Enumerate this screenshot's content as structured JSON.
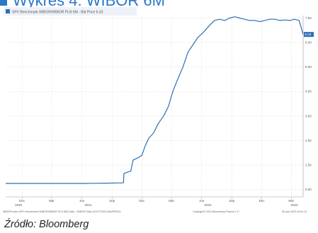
{
  "heading": {
    "text": "Wykres 4. WIBOR 6M"
  },
  "legend": {
    "label": "SPV Benchmark WIBOR/WIBOR PLN 6M - Bid Price 6.33"
  },
  "footer": {
    "left": "WIBOR Index (SPV Benchmark WIBOR/WIBOR PLN 6M) Daily - WIBOR Daily 12OCT2020-06APR2023",
    "center": "Copyright© 2023 Bloomberg Finance L.P.",
    "right": "06-Apr-2023 00:01:13"
  },
  "source": {
    "text": "Źródło: Bloomberg"
  },
  "colors": {
    "accent": "#2b78c5",
    "line": "#2f6fb5",
    "grid": "#d8d8d8",
    "axis_text": "#555555",
    "legend_marker": "#2f6fb5",
    "legend_bg": "#eef2f8"
  },
  "chart_data": {
    "type": "line",
    "title": "",
    "xlabel": "",
    "ylabel": "",
    "ylim": [
      -0.3,
      7.1
    ],
    "y_ticks": [
      "0.00",
      "1.00",
      "2.00",
      "3.00",
      "4.00",
      "5.00",
      "6.00",
      "7.00"
    ],
    "y_tick_values": [
      0,
      1,
      2,
      3,
      4,
      5,
      6,
      7
    ],
    "current_value_label": "6.33",
    "x_range": [
      "2020-10-12",
      "2023-04-06"
    ],
    "x_ticks": [
      {
        "label": "Dec",
        "date": "2020-12-01"
      },
      {
        "label": "Mar",
        "date": "2021-03-01"
      },
      {
        "label": "Jun",
        "date": "2021-06-01"
      },
      {
        "label": "Sep",
        "date": "2021-09-01"
      },
      {
        "label": "Dec",
        "date": "2021-12-01"
      },
      {
        "label": "Mar",
        "date": "2022-03-01"
      },
      {
        "label": "Jun",
        "date": "2022-06-01"
      },
      {
        "label": "Sep",
        "date": "2022-09-01"
      },
      {
        "label": "Dec",
        "date": "2022-12-01"
      },
      {
        "label": "Mar",
        "date": "2023-03-01"
      }
    ],
    "x_year_labels": [
      {
        "label": "2020",
        "date": "2020-11-20"
      },
      {
        "label": "2021",
        "date": "2021-06-20"
      },
      {
        "label": "2022",
        "date": "2022-06-20"
      },
      {
        "label": "2023",
        "date": "2023-03-10"
      }
    ],
    "grid": true,
    "legend_position": "top-left",
    "series": [
      {
        "name": "SPV Benchmark WIBOR/WIBOR PLN 6M",
        "points": [
          [
            "2020-10-12",
            0.25
          ],
          [
            "2020-12-15",
            0.25
          ],
          [
            "2021-02-15",
            0.25
          ],
          [
            "2021-04-15",
            0.25
          ],
          [
            "2021-06-15",
            0.25
          ],
          [
            "2021-08-15",
            0.26
          ],
          [
            "2021-09-20",
            0.27
          ],
          [
            "2021-09-30",
            0.27
          ],
          [
            "2021-10-06",
            0.28
          ],
          [
            "2021-10-07",
            0.65
          ],
          [
            "2021-10-20",
            0.72
          ],
          [
            "2021-10-28",
            0.75
          ],
          [
            "2021-11-04",
            1.2
          ],
          [
            "2021-11-20",
            1.3
          ],
          [
            "2021-12-01",
            1.4
          ],
          [
            "2021-12-10",
            1.75
          ],
          [
            "2021-12-22",
            2.1
          ],
          [
            "2022-01-05",
            2.3
          ],
          [
            "2022-01-20",
            2.7
          ],
          [
            "2022-02-05",
            3.0
          ],
          [
            "2022-02-20",
            3.4
          ],
          [
            "2022-03-05",
            4.0
          ],
          [
            "2022-03-20",
            4.5
          ],
          [
            "2022-04-05",
            5.0
          ],
          [
            "2022-04-20",
            5.6
          ],
          [
            "2022-05-05",
            5.9
          ],
          [
            "2022-05-20",
            6.2
          ],
          [
            "2022-06-05",
            6.4
          ],
          [
            "2022-06-25",
            6.7
          ],
          [
            "2022-07-10",
            6.9
          ],
          [
            "2022-07-25",
            6.95
          ],
          [
            "2022-08-10",
            6.9
          ],
          [
            "2022-08-25",
            7.0
          ],
          [
            "2022-09-10",
            7.05
          ],
          [
            "2022-09-25",
            7.0
          ],
          [
            "2022-10-10",
            6.95
          ],
          [
            "2022-10-25",
            6.9
          ],
          [
            "2022-11-10",
            6.9
          ],
          [
            "2022-11-25",
            6.85
          ],
          [
            "2022-12-10",
            6.9
          ],
          [
            "2022-12-25",
            6.95
          ],
          [
            "2023-01-10",
            6.95
          ],
          [
            "2023-01-25",
            6.9
          ],
          [
            "2023-02-10",
            6.92
          ],
          [
            "2023-02-25",
            6.9
          ],
          [
            "2023-03-10",
            6.95
          ],
          [
            "2023-03-25",
            6.9
          ],
          [
            "2023-04-06",
            6.33
          ]
        ]
      }
    ]
  }
}
